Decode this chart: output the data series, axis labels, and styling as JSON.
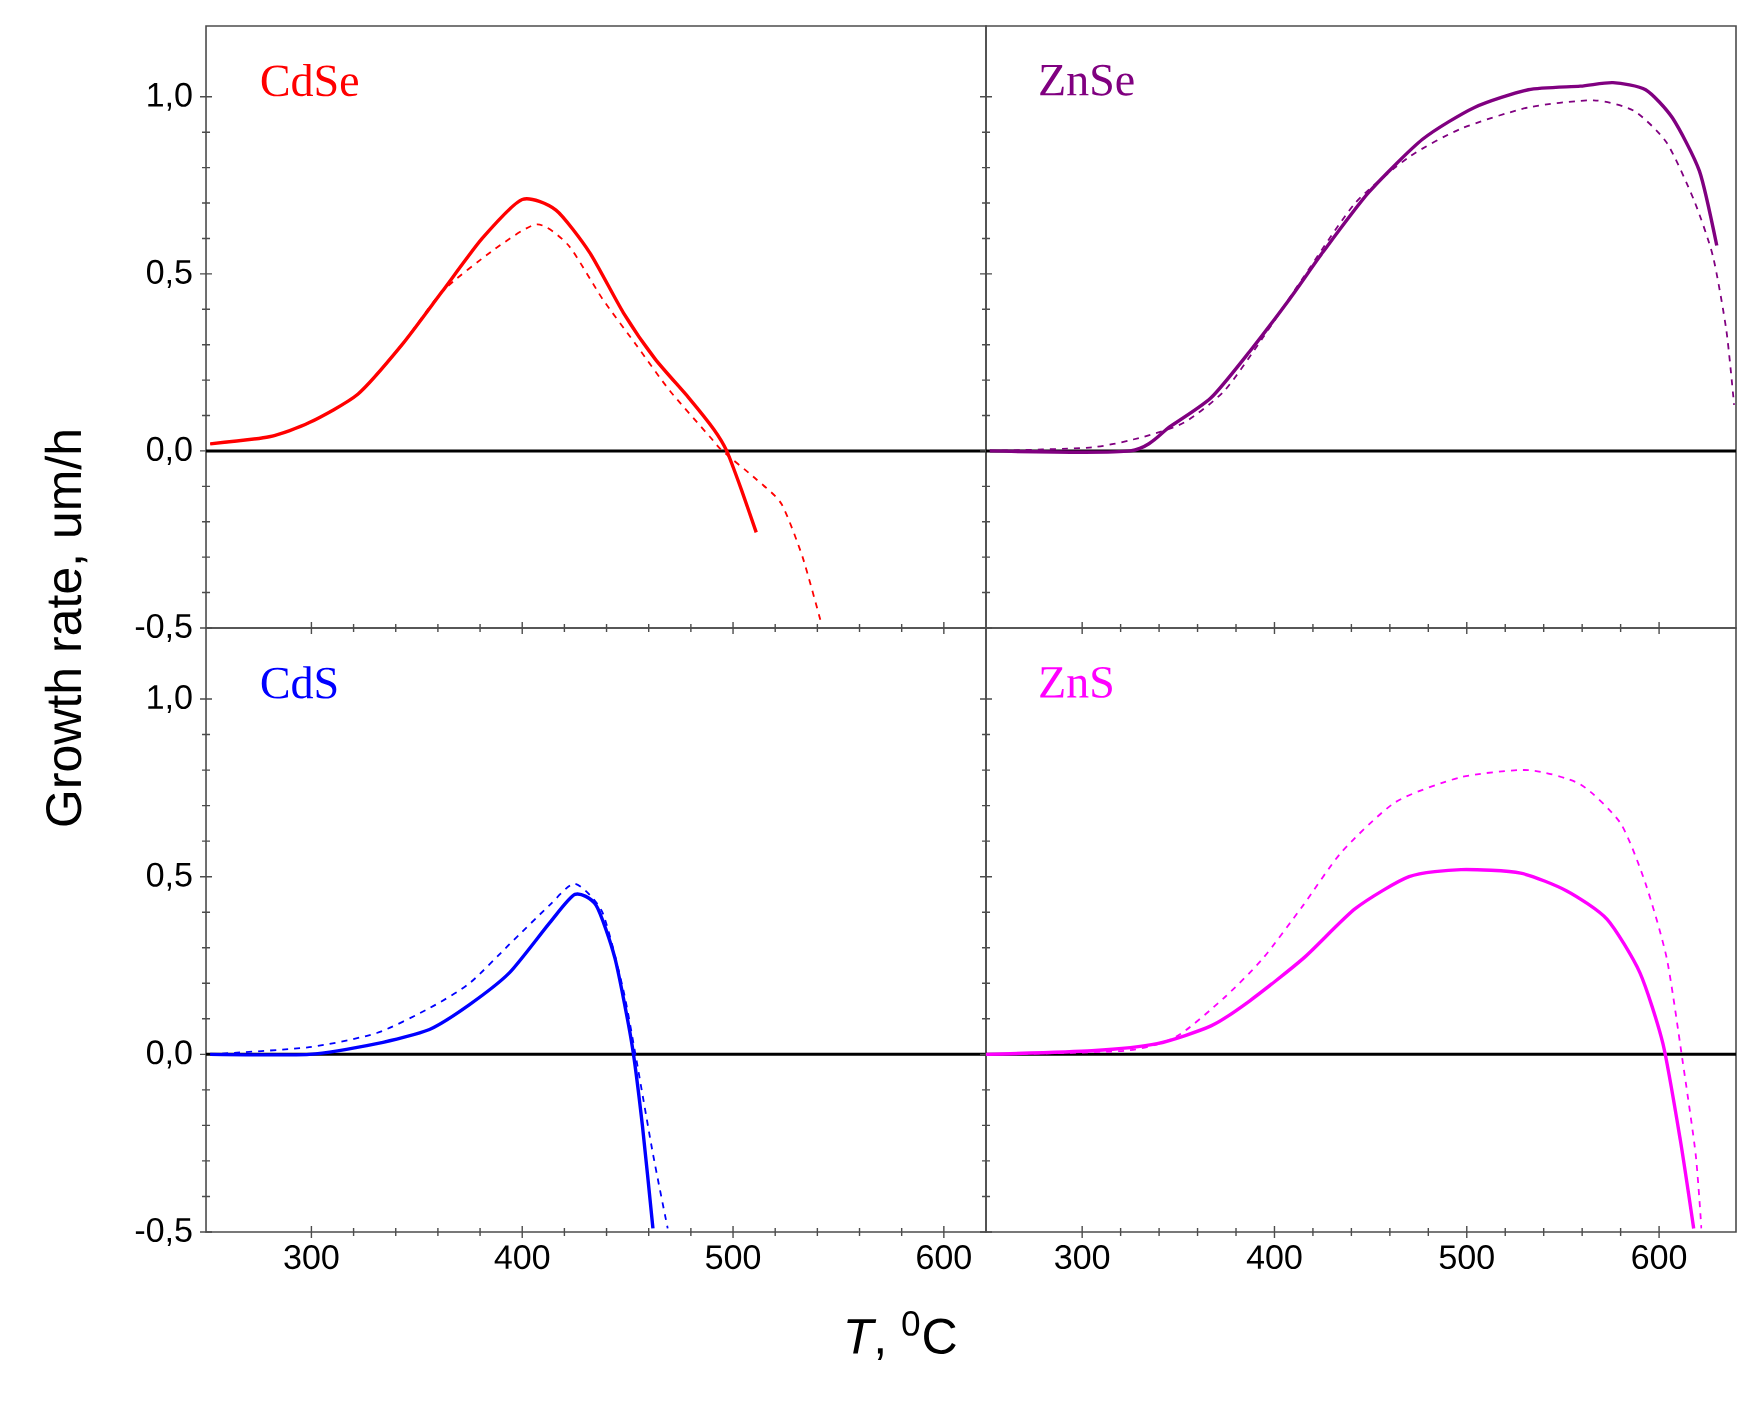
{
  "chart_data": [
    {
      "type": "line",
      "title": "CdSe",
      "ylabel": "Growth rate, um/h",
      "xlim": [
        250,
        620
      ],
      "ylim": [
        -0.5,
        1.2
      ],
      "xticks": [
        300,
        400,
        500,
        600
      ],
      "yticks": [
        {
          "value": -0.5,
          "label": "-0,5"
        },
        {
          "value": 0,
          "label": "0,0"
        },
        {
          "value": 0.5,
          "label": "0,5"
        },
        {
          "value": 1.0,
          "label": "1,0"
        }
      ],
      "tick_labels": "y",
      "ref_lines": [
        {
          "axis": "y",
          "value": 0,
          "color": "#000000"
        }
      ],
      "series": [
        {
          "color": "#ff0000",
          "line_style": "solid",
          "x": [
            252,
            280,
            299,
            322,
            343,
            362,
            381,
            400,
            416,
            432,
            448,
            463,
            479,
            491,
            497,
            504,
            511
          ],
          "values": [
            0.02,
            0.04,
            0.08,
            0.16,
            0.3,
            0.45,
            0.6,
            0.71,
            0.68,
            0.56,
            0.39,
            0.26,
            0.15,
            0.06,
            0.0,
            -0.11,
            -0.23
          ]
        },
        {
          "color": "#ff0000",
          "line_style": "dashed",
          "x": [
            252,
            280,
            299,
            322,
            343,
            362,
            387,
            407,
            422,
            438,
            454,
            470,
            489,
            495,
            511,
            523,
            533,
            542
          ],
          "values": [
            0.02,
            0.04,
            0.08,
            0.16,
            0.3,
            0.45,
            0.57,
            0.64,
            0.58,
            0.43,
            0.3,
            0.17,
            0.04,
            0.0,
            -0.08,
            -0.15,
            -0.3,
            -0.49
          ]
        }
      ]
    },
    {
      "type": "line",
      "title": "ZnSe",
      "xlim": [
        250,
        640
      ],
      "ylim": [
        -0.5,
        1.2
      ],
      "xticks": [
        300,
        400,
        500,
        600
      ],
      "yticks": [
        -0.5,
        0,
        0.5,
        1.0
      ],
      "tick_labels": false,
      "ref_lines": [
        {
          "axis": "y",
          "value": 0,
          "color": "#000000"
        }
      ],
      "series": [
        {
          "color": "#800080",
          "line_style": "solid",
          "x": [
            252,
            325,
            346,
            367,
            387,
            408,
            425,
            449,
            477,
            504,
            532,
            559,
            576,
            593,
            607,
            621,
            630
          ],
          "values": [
            0.0,
            0.0,
            0.07,
            0.15,
            0.28,
            0.43,
            0.56,
            0.73,
            0.88,
            0.97,
            1.02,
            1.03,
            1.04,
            1.02,
            0.94,
            0.79,
            0.58
          ]
        },
        {
          "color": "#800080",
          "line_style": "dashed",
          "x": [
            252,
            305,
            332,
            353,
            374,
            394,
            415,
            442,
            470,
            497,
            532,
            566,
            587,
            604,
            618,
            628,
            635,
            639
          ],
          "values": [
            0.0,
            0.01,
            0.04,
            0.08,
            0.17,
            0.32,
            0.49,
            0.7,
            0.83,
            0.91,
            0.97,
            0.99,
            0.96,
            0.87,
            0.71,
            0.55,
            0.34,
            0.13
          ]
        }
      ]
    },
    {
      "type": "line",
      "title": "CdS",
      "xlabel": "*T*, $^{0}$C",
      "xlim": [
        250,
        620
      ],
      "ylim": [
        -0.5,
        1.2
      ],
      "xticks": [
        300,
        400,
        500,
        600
      ],
      "yticks": [
        {
          "value": -0.5,
          "label": "-0,5"
        },
        {
          "value": 0,
          "label": "0,0"
        },
        {
          "value": 0.5,
          "label": "0,5"
        },
        {
          "value": 1.0,
          "label": "1,0"
        }
      ],
      "ref_lines": [
        {
          "axis": "y",
          "value": 0,
          "color": "#000000"
        }
      ],
      "series": [
        {
          "color": "#0000ff",
          "line_style": "solid",
          "x": [
            252,
            299,
            331,
            356,
            375,
            394,
            413,
            425,
            435,
            444,
            452,
            457,
            462
          ],
          "values": [
            0.0,
            0.0,
            0.03,
            0.07,
            0.14,
            0.23,
            0.37,
            0.45,
            0.42,
            0.27,
            0.03,
            -0.2,
            -0.49
          ]
        },
        {
          "color": "#0000ff",
          "line_style": "dashed",
          "x": [
            252,
            299,
            331,
            356,
            375,
            394,
            413,
            425,
            438,
            448,
            454,
            462,
            469
          ],
          "values": [
            0.0,
            0.02,
            0.06,
            0.13,
            0.2,
            0.31,
            0.42,
            0.48,
            0.4,
            0.18,
            -0.01,
            -0.28,
            -0.49
          ]
        }
      ]
    },
    {
      "type": "line",
      "title": "ZnS",
      "xlim": [
        250,
        640
      ],
      "ylim": [
        -0.5,
        1.2
      ],
      "xticks": [
        300,
        400,
        500,
        600
      ],
      "yticks": [
        -0.5,
        0,
        0.5,
        1.0
      ],
      "tick_labels": "x",
      "ref_lines": [
        {
          "axis": "y",
          "value": 0,
          "color": "#000000"
        }
      ],
      "series": [
        {
          "color": "#ff00ff",
          "line_style": "solid",
          "x": [
            250,
            305,
            339,
            367,
            387,
            415,
            442,
            470,
            497,
            528,
            552,
            573,
            590,
            602,
            611,
            618
          ],
          "values": [
            0.0,
            0.01,
            0.03,
            0.08,
            0.15,
            0.27,
            0.41,
            0.5,
            0.52,
            0.51,
            0.46,
            0.38,
            0.23,
            0.03,
            -0.24,
            -0.49
          ]
        },
        {
          "color": "#ff00ff",
          "line_style": "dashed",
          "x": [
            250,
            322,
            349,
            374,
            394,
            415,
            435,
            463,
            497,
            532,
            559,
            580,
            593,
            604,
            612,
            619,
            622
          ],
          "values": [
            0.0,
            0.01,
            0.05,
            0.16,
            0.27,
            0.42,
            0.57,
            0.71,
            0.78,
            0.8,
            0.76,
            0.65,
            0.48,
            0.27,
            -0.01,
            -0.28,
            -0.49
          ]
        }
      ]
    }
  ]
}
